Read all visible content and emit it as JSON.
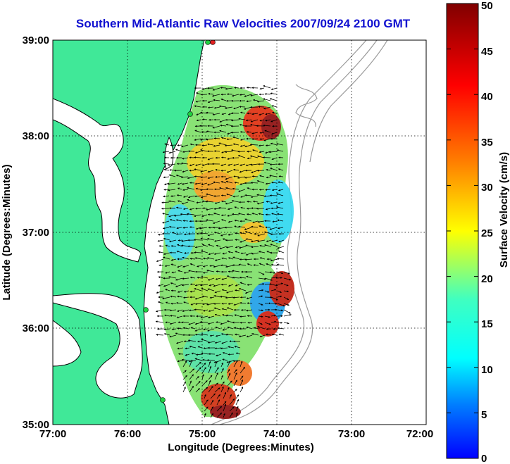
{
  "title": "Southern Mid-Atlantic Raw Velocities 2007/09/24 2100 GMT",
  "x_axis": {
    "label": "Longitude (Degrees:Minutes)",
    "ticks": [
      "77:00",
      "76:00",
      "75:00",
      "74:00",
      "73:00",
      "72:00"
    ],
    "range": [
      -77,
      -72
    ]
  },
  "y_axis": {
    "label": "Latitude (Degrees:Minutes)",
    "ticks": [
      "35:00",
      "36:00",
      "37:00",
      "38:00",
      "39:00"
    ],
    "range": [
      35,
      39
    ]
  },
  "colorbar": {
    "label": "Surface Velocity (cm/s)",
    "ticks": [
      "0",
      "5",
      "10",
      "15",
      "20",
      "25",
      "30",
      "35",
      "40",
      "45",
      "50"
    ],
    "range": [
      0,
      50
    ]
  },
  "colors": {
    "land": "#40e898",
    "title": "#1010d0",
    "station": "#20d040"
  },
  "grid": true
}
